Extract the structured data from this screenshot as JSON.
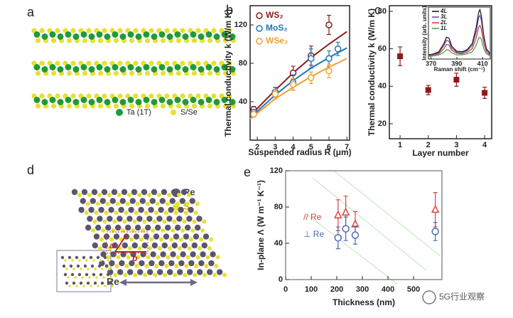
{
  "panels": [
    "a",
    "b",
    "c",
    "d",
    "e"
  ],
  "structure_a": {
    "legend": [
      "Ta (1T)",
      "S/Se"
    ]
  },
  "structure_d": {
    "legend": [
      "Re",
      "S"
    ],
    "vectors": [
      "a",
      "b"
    ],
    "direction": "Re"
  },
  "watermark": "5G行业观察",
  "chart_data": [
    {
      "type": "scatter",
      "x_label": "Suspended radius R (μm)",
      "y_label": "Thermal conductivity k (W/m K)",
      "xlim": [
        1.6,
        7.15
      ],
      "xticks": [
        2,
        3,
        4,
        5,
        6,
        7
      ],
      "ylim": [
        0,
        140
      ],
      "yticks": [
        40,
        80,
        120
      ],
      "fit_x": [
        1.6,
        2,
        3,
        4,
        5,
        6,
        7
      ],
      "series": [
        {
          "name": "WS₂",
          "color": "#8b1a1a",
          "marker": "circle",
          "x": [
            1.8,
            3,
            4,
            5,
            6
          ],
          "values": [
            32,
            50,
            70,
            88,
            120
          ],
          "errors": [
            3,
            5,
            7,
            10,
            10
          ],
          "fit": [
            25,
            33,
            52,
            70,
            86,
            100,
            113
          ]
        },
        {
          "name": "MoS₂",
          "color": "#1f77b4",
          "marker": "circle",
          "x": [
            1.8,
            3,
            4,
            5,
            6,
            6.5
          ],
          "values": [
            29,
            50,
            60,
            85,
            85,
            95
          ],
          "errors": [
            3,
            5,
            8,
            10,
            8,
            7
          ],
          "fit": [
            23,
            30,
            47,
            62,
            75,
            86,
            96
          ]
        },
        {
          "name": "WSe₂",
          "color": "#f0a030",
          "marker": "circle",
          "x": [
            1.8,
            3,
            4,
            5,
            6
          ],
          "values": [
            27,
            48,
            58,
            65,
            72
          ],
          "errors": [
            3,
            5,
            6,
            6,
            7
          ],
          "fit": [
            22,
            28,
            43,
            55,
            66,
            76,
            85
          ]
        }
      ]
    },
    {
      "type": "scatter",
      "x_label": "Layer number",
      "y_label": "Thermal conductivity k (W/m K)",
      "xlim": [
        0.62,
        4.25
      ],
      "xticks": [
        1,
        2,
        3,
        4
      ],
      "ylim": [
        12,
        83
      ],
      "yticks": [
        20,
        40,
        60,
        80
      ],
      "series": [
        {
          "color": "#8b1a1a",
          "marker": "square",
          "x": [
            1,
            2,
            3,
            4
          ],
          "values": [
            56,
            38,
            43.5,
            36.5
          ],
          "errors": [
            5,
            2.5,
            3.5,
            3
          ]
        }
      ]
    },
    {
      "type": "line",
      "x_label": "Raman shift (cm⁻¹)",
      "y_label": "Intensity (arb. units)",
      "xlim": [
        368,
        416
      ],
      "xticks": [
        370,
        390,
        410
      ],
      "ylim": [
        0,
        1
      ],
      "x": [
        368,
        372,
        376,
        380,
        382,
        384,
        386,
        390,
        394,
        398,
        402,
        405,
        407,
        408,
        409,
        411,
        413,
        416
      ],
      "series": [
        {
          "name": "4L",
          "color": "#111111",
          "values": [
            0.08,
            0.1,
            0.14,
            0.3,
            0.42,
            0.4,
            0.25,
            0.15,
            0.14,
            0.18,
            0.3,
            0.6,
            0.9,
            0.95,
            0.85,
            0.45,
            0.2,
            0.1
          ]
        },
        {
          "name": "3L",
          "color": "#5a4aa0",
          "values": [
            0.07,
            0.09,
            0.12,
            0.26,
            0.36,
            0.34,
            0.21,
            0.13,
            0.12,
            0.16,
            0.26,
            0.52,
            0.8,
            0.84,
            0.75,
            0.4,
            0.18,
            0.09
          ]
        },
        {
          "name": "2L",
          "color": "#d03030",
          "values": [
            0.06,
            0.08,
            0.1,
            0.2,
            0.28,
            0.27,
            0.17,
            0.11,
            0.1,
            0.13,
            0.2,
            0.4,
            0.62,
            0.65,
            0.58,
            0.3,
            0.14,
            0.07
          ]
        },
        {
          "name": "1L",
          "color": "#3aa040",
          "values": [
            0.05,
            0.06,
            0.08,
            0.13,
            0.18,
            0.17,
            0.12,
            0.08,
            0.08,
            0.1,
            0.14,
            0.26,
            0.4,
            0.42,
            0.38,
            0.2,
            0.1,
            0.06
          ]
        }
      ]
    },
    {
      "type": "scatter",
      "x_label": "Thickness (nm)",
      "y_label": "In-plane Λ (W m⁻¹ K⁻¹)",
      "xlim": [
        0,
        611
      ],
      "xticks": [
        0,
        100,
        200,
        300,
        400,
        500
      ],
      "ylim": [
        0,
        120
      ],
      "yticks": [
        0,
        40,
        80,
        120
      ],
      "series": [
        {
          "name": "// Re",
          "color": "#e04040",
          "marker": "triangle",
          "x": [
            205,
            235,
            272,
            585
          ],
          "values": [
            71,
            74,
            61,
            77
          ],
          "errors": [
            17,
            18,
            14,
            19
          ]
        },
        {
          "name": "⊥ Re",
          "color": "#4a6ab0",
          "marker": "circle",
          "x": [
            205,
            235,
            272,
            585
          ],
          "values": [
            46,
            56,
            49,
            53
          ],
          "errors": [
            12,
            13,
            10,
            10
          ]
        }
      ]
    }
  ]
}
